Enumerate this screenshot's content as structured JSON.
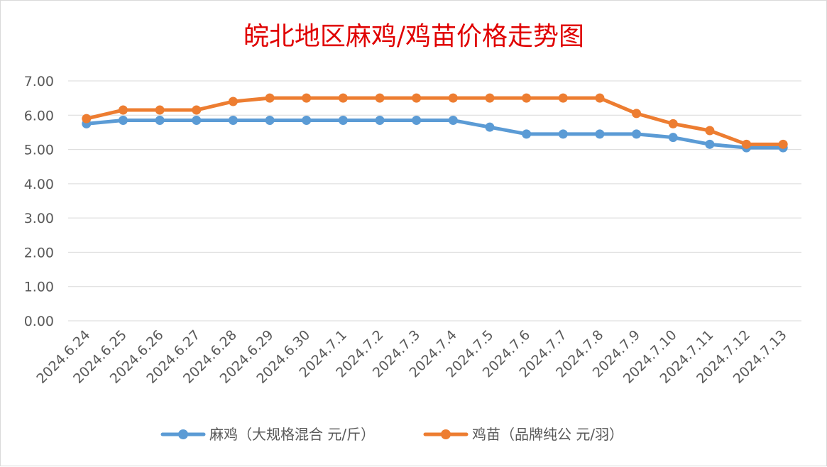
{
  "chart_data": {
    "type": "line",
    "title": "皖北地区麻鸡/鸡苗价格走势图",
    "categories": [
      "2024.6.24",
      "2024.6.25",
      "2024.6.26",
      "2024.6.27",
      "2024.6.28",
      "2024.6.29",
      "2024.6.30",
      "2024.7.1",
      "2024.7.2",
      "2024.7.3",
      "2024.7.4",
      "2024.7.5",
      "2024.7.6",
      "2024.7.7",
      "2024.7.8",
      "2024.7.9",
      "2024.7.10",
      "2024.7.11",
      "2024.7.12",
      "2024.7.13"
    ],
    "series": [
      {
        "name": "麻鸡（大规格混合 元/斤）",
        "color": "#5b9bd5",
        "values": [
          5.75,
          5.85,
          5.85,
          5.85,
          5.85,
          5.85,
          5.85,
          5.85,
          5.85,
          5.85,
          5.85,
          5.65,
          5.45,
          5.45,
          5.45,
          5.45,
          5.35,
          5.15,
          5.05,
          5.05
        ]
      },
      {
        "name": "鸡苗（品牌纯公 元/羽）",
        "color": "#ed7d31",
        "values": [
          5.9,
          6.15,
          6.15,
          6.15,
          6.4,
          6.5,
          6.5,
          6.5,
          6.5,
          6.5,
          6.5,
          6.5,
          6.5,
          6.5,
          6.5,
          6.05,
          5.75,
          5.55,
          5.15,
          5.15
        ]
      }
    ],
    "ylim": [
      0,
      7
    ],
    "yticks": [
      "0.00",
      "1.00",
      "2.00",
      "3.00",
      "4.00",
      "5.00",
      "6.00",
      "7.00"
    ],
    "grid": true,
    "legend_position": "bottom"
  }
}
